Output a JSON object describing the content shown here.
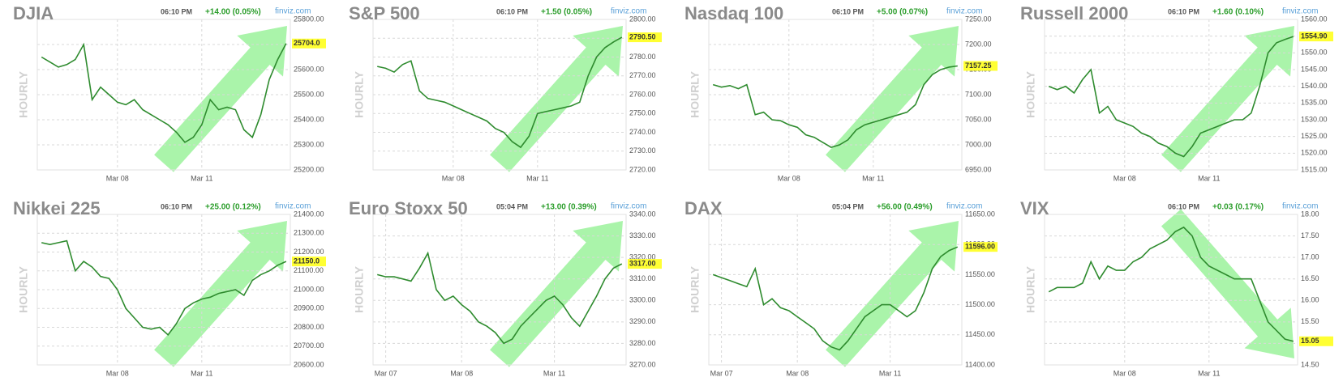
{
  "chart_data": [
    {
      "type": "line",
      "title": "DJIA",
      "time": "06:10 PM",
      "change": "+14.00 (0.05%)",
      "source": "finviz.com",
      "period": "HOURLY",
      "arrow": "up",
      "color": "#2e8b2e",
      "categories": [
        null,
        null,
        null,
        null,
        null,
        null,
        null,
        null,
        null,
        "Mar 08",
        null,
        null,
        null,
        null,
        null,
        null,
        null,
        null,
        null,
        "Mar 11",
        null,
        null,
        null,
        null,
        null,
        null,
        null,
        null,
        null,
        null
      ],
      "values": [
        25650,
        25630,
        25610,
        25620,
        25640,
        25700,
        25480,
        25530,
        25500,
        25470,
        25460,
        25480,
        25440,
        25420,
        25400,
        25380,
        25350,
        25310,
        25330,
        25380,
        25480,
        25440,
        25450,
        25440,
        25360,
        25330,
        25420,
        25560,
        25640,
        25704
      ],
      "last": {
        "value": 25704,
        "label": "25704.0"
      },
      "ylim": [
        25200,
        25800
      ],
      "yticks": [
        {
          "value": 25200,
          "label": "25200.00"
        },
        {
          "value": 25300,
          "label": "25300.00"
        },
        {
          "value": 25400,
          "label": "25400.00"
        },
        {
          "value": 25500,
          "label": "25500.00"
        },
        {
          "value": 25600,
          "label": "25600.00"
        },
        {
          "value": 25700,
          "label": "25700.00"
        },
        {
          "value": 25800,
          "label": "25800.00"
        }
      ]
    },
    {
      "type": "line",
      "title": "S&P 500",
      "time": "06:10 PM",
      "change": "+1.50 (0.05%)",
      "source": "finviz.com",
      "period": "HOURLY",
      "arrow": "up",
      "color": "#2e8b2e",
      "categories": [
        null,
        null,
        null,
        null,
        null,
        null,
        null,
        null,
        null,
        "Mar 08",
        null,
        null,
        null,
        null,
        null,
        null,
        null,
        null,
        null,
        "Mar 11",
        null,
        null,
        null,
        null,
        null,
        null,
        null,
        null,
        null,
        null
      ],
      "values": [
        2775,
        2774,
        2772,
        2776,
        2778,
        2762,
        2758,
        2757,
        2756,
        2754,
        2752,
        2750,
        2748,
        2746,
        2742,
        2740,
        2735,
        2732,
        2738,
        2750,
        2751,
        2752,
        2753,
        2754,
        2756,
        2770,
        2780,
        2785,
        2788,
        2790.5
      ],
      "last": {
        "value": 2790.5,
        "label": "2790.50"
      },
      "ylim": [
        2720,
        2800
      ],
      "yticks": [
        {
          "value": 2720,
          "label": "2720.00"
        },
        {
          "value": 2730,
          "label": "2730.00"
        },
        {
          "value": 2740,
          "label": "2740.00"
        },
        {
          "value": 2750,
          "label": "2750.00"
        },
        {
          "value": 2760,
          "label": "2760.00"
        },
        {
          "value": 2770,
          "label": "2770.00"
        },
        {
          "value": 2780,
          "label": "2780.00"
        },
        {
          "value": 2790,
          "label": "2790.00"
        },
        {
          "value": 2800,
          "label": "2800.00"
        }
      ]
    },
    {
      "type": "line",
      "title": "Nasdaq 100",
      "time": "06:10 PM",
      "change": "+5.00 (0.07%)",
      "source": "finviz.com",
      "period": "HOURLY",
      "arrow": "up",
      "color": "#2e8b2e",
      "categories": [
        null,
        null,
        null,
        null,
        null,
        null,
        null,
        null,
        null,
        "Mar 08",
        null,
        null,
        null,
        null,
        null,
        null,
        null,
        null,
        null,
        "Mar 11",
        null,
        null,
        null,
        null,
        null,
        null,
        null,
        null,
        null,
        null
      ],
      "values": [
        7120,
        7115,
        7118,
        7112,
        7120,
        7060,
        7065,
        7050,
        7048,
        7040,
        7035,
        7020,
        7015,
        7005,
        6995,
        7000,
        7010,
        7030,
        7040,
        7045,
        7050,
        7055,
        7060,
        7065,
        7080,
        7120,
        7140,
        7150,
        7155,
        7157.25
      ],
      "last": {
        "value": 7157.25,
        "label": "7157.25"
      },
      "ylim": [
        6950,
        7250
      ],
      "yticks": [
        {
          "value": 6950,
          "label": "6950.00"
        },
        {
          "value": 7000,
          "label": "7000.00"
        },
        {
          "value": 7050,
          "label": "7050.00"
        },
        {
          "value": 7100,
          "label": "7100.00"
        },
        {
          "value": 7150,
          "label": "7150.00"
        },
        {
          "value": 7200,
          "label": "7200.00"
        },
        {
          "value": 7250,
          "label": "7250.00"
        }
      ]
    },
    {
      "type": "line",
      "title": "Russell 2000",
      "time": "06:10 PM",
      "change": "+1.60 (0.10%)",
      "source": "finviz.com",
      "period": "HOURLY",
      "arrow": "up",
      "color": "#2e8b2e",
      "categories": [
        null,
        null,
        null,
        null,
        null,
        null,
        null,
        null,
        null,
        "Mar 08",
        null,
        null,
        null,
        null,
        null,
        null,
        null,
        null,
        null,
        "Mar 11",
        null,
        null,
        null,
        null,
        null,
        null,
        null,
        null,
        null,
        null
      ],
      "values": [
        1540,
        1539,
        1540,
        1538,
        1542,
        1545,
        1532,
        1534,
        1530,
        1529,
        1528,
        1526,
        1525,
        1523,
        1522,
        1520,
        1519,
        1522,
        1526,
        1527,
        1528,
        1529,
        1530,
        1530,
        1532,
        1540,
        1550,
        1553,
        1554,
        1554.9
      ],
      "last": {
        "value": 1554.9,
        "label": "1554.90"
      },
      "ylim": [
        1515,
        1560
      ],
      "yticks": [
        {
          "value": 1515,
          "label": "1515.00"
        },
        {
          "value": 1520,
          "label": "1520.00"
        },
        {
          "value": 1525,
          "label": "1525.00"
        },
        {
          "value": 1530,
          "label": "1530.00"
        },
        {
          "value": 1535,
          "label": "1535.00"
        },
        {
          "value": 1540,
          "label": "1540.00"
        },
        {
          "value": 1545,
          "label": "1545.00"
        },
        {
          "value": 1550,
          "label": "1550.00"
        },
        {
          "value": 1555,
          "label": "1555.00"
        },
        {
          "value": 1560,
          "label": "1560.00"
        }
      ]
    },
    {
      "type": "line",
      "title": "Nikkei 225",
      "time": "06:10 PM",
      "change": "+25.00 (0.12%)",
      "source": "finviz.com",
      "period": "HOURLY",
      "arrow": "up",
      "color": "#2e8b2e",
      "categories": [
        null,
        null,
        null,
        null,
        null,
        null,
        null,
        null,
        null,
        "Mar 08",
        null,
        null,
        null,
        null,
        null,
        null,
        null,
        null,
        null,
        "Mar 11",
        null,
        null,
        null,
        null,
        null,
        null,
        null,
        null,
        null,
        null
      ],
      "values": [
        21250,
        21240,
        21250,
        21260,
        21100,
        21150,
        21120,
        21070,
        21060,
        21000,
        20900,
        20850,
        20800,
        20790,
        20800,
        20760,
        20820,
        20900,
        20930,
        20950,
        20960,
        20980,
        20990,
        21000,
        20970,
        21050,
        21080,
        21100,
        21130,
        21150
      ],
      "last": {
        "value": 21150,
        "label": "21150.0"
      },
      "ylim": [
        20600,
        21400
      ],
      "yticks": [
        {
          "value": 20600,
          "label": "20600.00"
        },
        {
          "value": 20700,
          "label": "20700.00"
        },
        {
          "value": 20800,
          "label": "20800.00"
        },
        {
          "value": 20900,
          "label": "20900.00"
        },
        {
          "value": 21000,
          "label": "21000.00"
        },
        {
          "value": 21100,
          "label": "21100.00"
        },
        {
          "value": 21200,
          "label": "21200.00"
        },
        {
          "value": 21300,
          "label": "21300.00"
        },
        {
          "value": 21400,
          "label": "21400.00"
        }
      ]
    },
    {
      "type": "line",
      "title": "Euro Stoxx 50",
      "time": "05:04 PM",
      "change": "+13.00 (0.39%)",
      "source": "finviz.com",
      "period": "HOURLY",
      "arrow": "up",
      "color": "#2e8b2e",
      "categories": [
        null,
        "Mar 07",
        null,
        null,
        null,
        null,
        null,
        null,
        null,
        null,
        "Mar 08",
        null,
        null,
        null,
        null,
        null,
        null,
        null,
        null,
        null,
        null,
        "Mar 11",
        null,
        null,
        null,
        null,
        null,
        null,
        null,
        null
      ],
      "values": [
        3312,
        3311,
        3311,
        3310,
        3309,
        3315,
        3322,
        3305,
        3300,
        3302,
        3298,
        3295,
        3290,
        3288,
        3285,
        3280,
        3282,
        3288,
        3292,
        3296,
        3300,
        3302,
        3298,
        3292,
        3288,
        3295,
        3302,
        3310,
        3315,
        3317
      ],
      "last": {
        "value": 3317,
        "label": "3317.00"
      },
      "ylim": [
        3270,
        3340
      ],
      "yticks": [
        {
          "value": 3270,
          "label": "3270.00"
        },
        {
          "value": 3280,
          "label": "3280.00"
        },
        {
          "value": 3290,
          "label": "3290.00"
        },
        {
          "value": 3300,
          "label": "3300.00"
        },
        {
          "value": 3310,
          "label": "3310.00"
        },
        {
          "value": 3320,
          "label": "3320.00"
        },
        {
          "value": 3330,
          "label": "3330.00"
        },
        {
          "value": 3340,
          "label": "3340.00"
        }
      ]
    },
    {
      "type": "line",
      "title": "DAX",
      "time": "05:04 PM",
      "change": "+56.00 (0.49%)",
      "source": "finviz.com",
      "period": "HOURLY",
      "arrow": "up",
      "color": "#2e8b2e",
      "categories": [
        null,
        "Mar 07",
        null,
        null,
        null,
        null,
        null,
        null,
        null,
        null,
        "Mar 08",
        null,
        null,
        null,
        null,
        null,
        null,
        null,
        null,
        null,
        null,
        "Mar 11",
        null,
        null,
        null,
        null,
        null,
        null,
        null,
        null
      ],
      "values": [
        11550,
        11545,
        11540,
        11535,
        11530,
        11560,
        11500,
        11510,
        11495,
        11490,
        11480,
        11470,
        11460,
        11440,
        11430,
        11425,
        11440,
        11460,
        11480,
        11490,
        11500,
        11500,
        11490,
        11480,
        11490,
        11520,
        11560,
        11580,
        11590,
        11596
      ],
      "last": {
        "value": 11596,
        "label": "11596.00"
      },
      "ylim": [
        11400,
        11650
      ],
      "yticks": [
        {
          "value": 11400,
          "label": "11400.00"
        },
        {
          "value": 11450,
          "label": "11450.00"
        },
        {
          "value": 11500,
          "label": "11500.00"
        },
        {
          "value": 11550,
          "label": "11550.00"
        },
        {
          "value": 11600,
          "label": "11600.00"
        },
        {
          "value": 11650,
          "label": "11650.00"
        }
      ]
    },
    {
      "type": "line",
      "title": "VIX",
      "time": "06:10 PM",
      "change": "+0.03 (0.17%)",
      "source": "finviz.com",
      "period": "HOURLY",
      "arrow": "down",
      "color": "#2e8b2e",
      "categories": [
        null,
        null,
        null,
        null,
        null,
        null,
        null,
        null,
        null,
        "Mar 08",
        null,
        null,
        null,
        null,
        null,
        null,
        null,
        null,
        null,
        "Mar 11",
        null,
        null,
        null,
        null,
        null,
        null,
        null,
        null,
        null,
        null
      ],
      "values": [
        16.2,
        16.3,
        16.3,
        16.3,
        16.4,
        16.9,
        16.5,
        16.8,
        16.7,
        16.7,
        16.9,
        17.0,
        17.2,
        17.3,
        17.4,
        17.6,
        17.7,
        17.5,
        17.0,
        16.8,
        16.7,
        16.6,
        16.5,
        16.5,
        16.5,
        16.0,
        15.5,
        15.3,
        15.1,
        15.05
      ],
      "last": {
        "value": 15.05,
        "label": "15.05"
      },
      "ylim": [
        14.5,
        18
      ],
      "yticks": [
        {
          "value": 14.5,
          "label": "14.50"
        },
        {
          "value": 15,
          "label": "15.00"
        },
        {
          "value": 15.5,
          "label": "15.50"
        },
        {
          "value": 16,
          "label": "16.00"
        },
        {
          "value": 16.5,
          "label": "16.50"
        },
        {
          "value": 17,
          "label": "17.00"
        },
        {
          "value": 17.5,
          "label": "17.50"
        },
        {
          "value": 18,
          "label": "18.00"
        }
      ]
    }
  ]
}
